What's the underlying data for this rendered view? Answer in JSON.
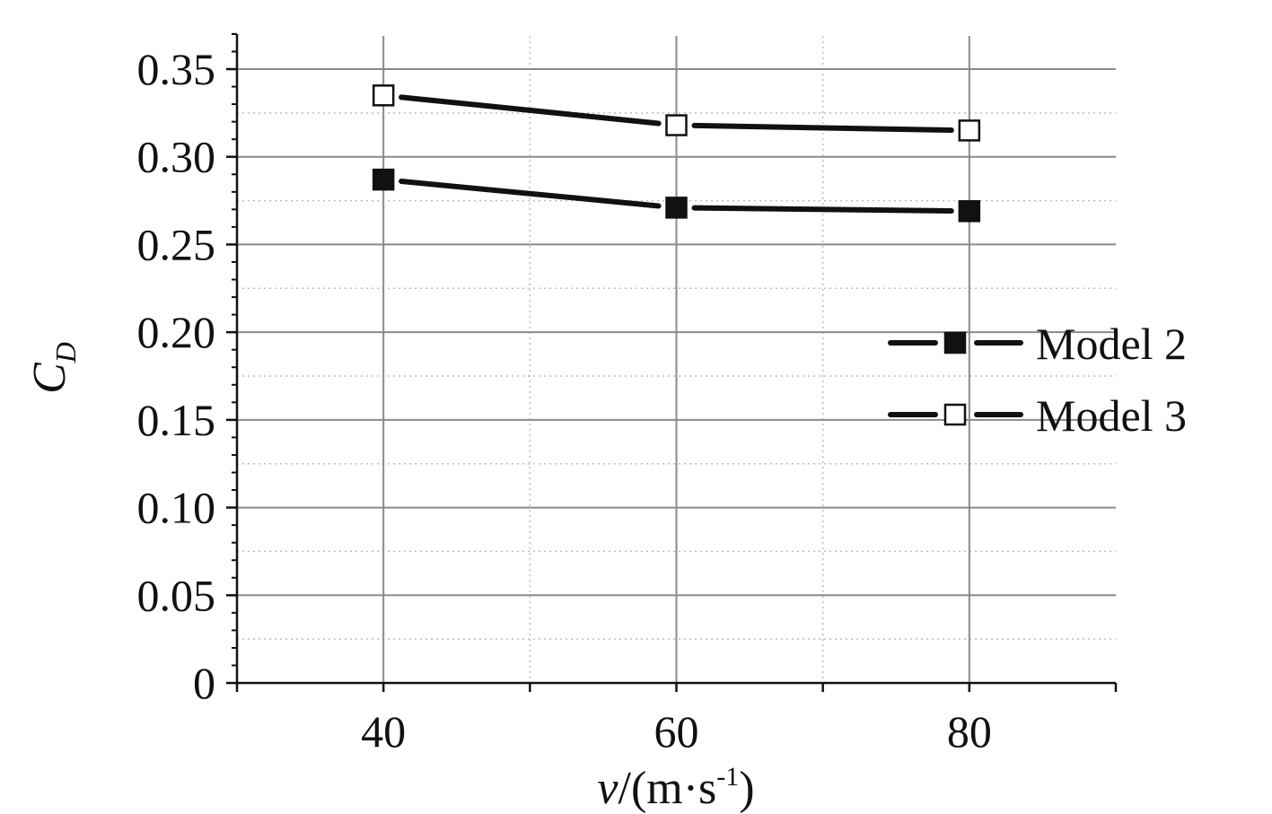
{
  "chart_data": {
    "type": "line",
    "title": "",
    "xlabel": {
      "var": "v",
      "unit_prefix": "/(m·s",
      "exponent": "-1",
      "unit_suffix": ")"
    },
    "ylabel": {
      "main": "C",
      "subscript": "D"
    },
    "xlim": [
      30,
      90
    ],
    "ylim": [
      0,
      0.35
    ],
    "x_ticks": [
      40,
      60,
      80
    ],
    "x_tick_labels": [
      "40",
      "60",
      "80"
    ],
    "y_ticks": [
      0,
      0.05,
      0.1,
      0.15,
      0.2,
      0.25,
      0.3,
      0.35
    ],
    "y_tick_labels": [
      "0",
      "0.05",
      "0.10",
      "0.15",
      "0.20",
      "0.25",
      "0.30",
      "0.35"
    ],
    "grid": true,
    "legend_position": "right",
    "series": [
      {
        "name": "Model 2",
        "marker": "filled-square",
        "color": "#111111",
        "x": [
          40,
          60,
          80
        ],
        "values": [
          0.287,
          0.271,
          0.269
        ]
      },
      {
        "name": "Model 3",
        "marker": "open-square",
        "color": "#111111",
        "x": [
          40,
          60,
          80
        ],
        "values": [
          0.335,
          0.318,
          0.315
        ]
      }
    ]
  }
}
